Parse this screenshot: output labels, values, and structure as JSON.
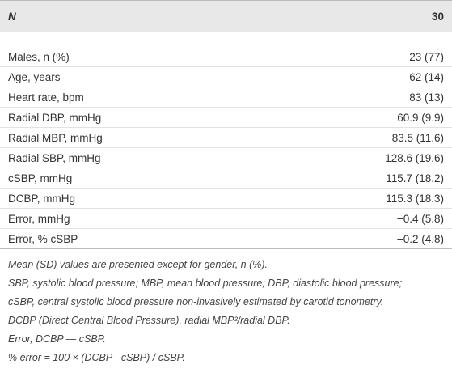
{
  "table": {
    "header": [
      "N",
      "30"
    ],
    "rows": [
      [
        "Males, n (%)",
        "23 (77)"
      ],
      [
        "Age, years",
        "62 (14)"
      ],
      [
        "Heart rate, bpm",
        "83 (13)"
      ],
      [
        "Radial DBP, mmHg",
        "60.9 (9.9)"
      ],
      [
        "Radial MBP, mmHg",
        "83.5 (11.6)"
      ],
      [
        "Radial SBP, mmHg",
        "128.6 (19.6)"
      ],
      [
        "cSBP, mmHg",
        "115.7 (18.2)"
      ],
      [
        "DCBP, mmHg",
        "115.3 (18.3)"
      ],
      [
        "Error, mmHg",
        "−0.4 (5.8)"
      ],
      [
        "Error, % cSBP",
        "−0.2 (4.8)"
      ]
    ]
  },
  "footnotes": [
    "Mean (SD) values are presented except for gender, n (%).",
    "SBP, systolic blood pressure; MBP, mean blood pressure; DBP, diastolic blood pressure;",
    "cSBP, central systolic blood pressure non-invasively estimated by carotid tonometry.",
    "DCBP (Direct Central Blood Pressure), radial MBP²/radial DBP.",
    "Error, DCBP — cSBP.",
    "% error = 100 × (DCBP - cSBP) / cSBP."
  ]
}
